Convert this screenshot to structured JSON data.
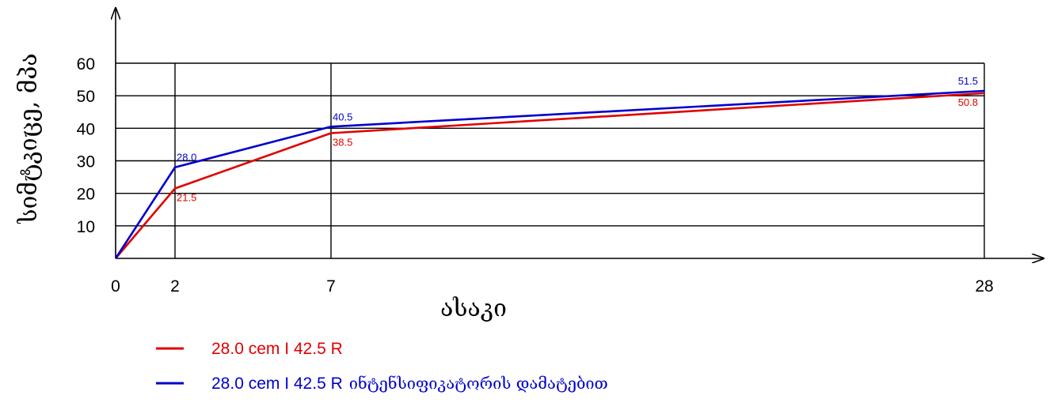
{
  "chart_data": {
    "type": "line",
    "xlabel": "ასაკი",
    "ylabel": "სიმტკიცე, მპა",
    "x": [
      0,
      2,
      7,
      28
    ],
    "x_tick_labels": [
      "0",
      "2",
      "7",
      "28"
    ],
    "y_tick_labels": [
      "10",
      "20",
      "30",
      "40",
      "50",
      "60"
    ],
    "ylim": [
      0,
      60
    ],
    "grid": true,
    "legend_position": "bottom",
    "series": [
      {
        "name": "28.0 cem I 42.5 R",
        "color": "#e00000",
        "values": [
          0,
          21.5,
          38.5,
          50.8
        ],
        "data_labels": [
          "",
          "21.5",
          "38.5",
          "50.8"
        ]
      },
      {
        "name": "28.0 cem I 42.5 R ინტენსიფიკატორის დამატებით",
        "name_latin": "28.0 cem I 42.5 R",
        "name_georgian": "ინტენსიფიკატორის დამატებით",
        "color": "#0000cc",
        "values": [
          0,
          28.0,
          40.5,
          51.5
        ],
        "data_labels": [
          "",
          "28.0",
          "40.5",
          "51.5"
        ]
      }
    ]
  }
}
